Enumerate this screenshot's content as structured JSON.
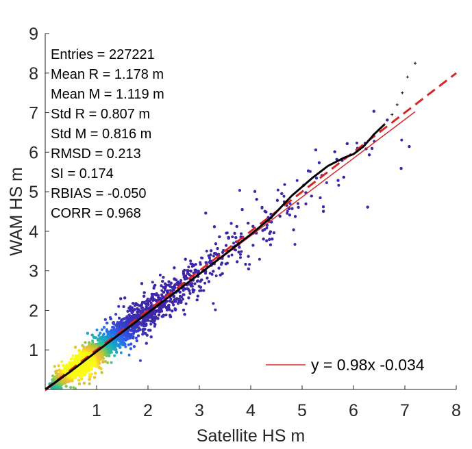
{
  "chart_data": {
    "type": "scatter",
    "title": "",
    "xlabel": "Satellite HS m",
    "ylabel": "WAM  HS m",
    "xlim": [
      0,
      8
    ],
    "ylim": [
      0,
      9
    ],
    "xticks": [
      "1",
      "2",
      "3",
      "4",
      "5",
      "6",
      "7",
      "8"
    ],
    "yticks": [
      "1",
      "2",
      "3",
      "4",
      "5",
      "6",
      "7",
      "8",
      "9"
    ],
    "grid": false,
    "stats": [
      "Entries = 227221",
      "Mean R = 1.178 m",
      "Mean M = 1.119 m",
      "Std R = 0.807 m",
      "Std M = 0.816 m",
      "RMSD = 0.213",
      "SI = 0.174",
      "RBIAS = -0.050",
      "CORR = 0.968"
    ],
    "legend": {
      "position": "bottom-right",
      "entries": [
        {
          "label": "y = 0.98x -0.034",
          "color": "#d62728",
          "style": "solid"
        }
      ]
    },
    "fit_line": {
      "slope": 0.98,
      "intercept": -0.034,
      "x_range": [
        0,
        7.2
      ],
      "color": "#d62728"
    },
    "identity_line": {
      "slope": 1,
      "intercept": 0,
      "x_range": [
        0,
        8
      ],
      "color": "#d62728",
      "style": "dashed"
    },
    "qq_points": {
      "color": "#000000",
      "x": [
        0.0,
        0.5,
        1.0,
        1.5,
        2.0,
        2.5,
        3.0,
        3.5,
        4.0,
        4.4,
        4.8,
        5.2,
        5.5,
        5.8,
        6.0,
        6.2,
        6.4,
        6.6,
        6.75,
        6.85,
        6.95,
        7.05,
        7.2
      ],
      "y": [
        0.0,
        0.46,
        0.96,
        1.45,
        1.94,
        2.43,
        2.92,
        3.42,
        3.92,
        4.35,
        4.9,
        5.35,
        5.65,
        5.85,
        5.95,
        6.15,
        6.45,
        6.7,
        6.95,
        7.2,
        7.5,
        7.9,
        8.25
      ]
    },
    "density": {
      "colormap": "parula",
      "description_points_n": 227221
    }
  }
}
